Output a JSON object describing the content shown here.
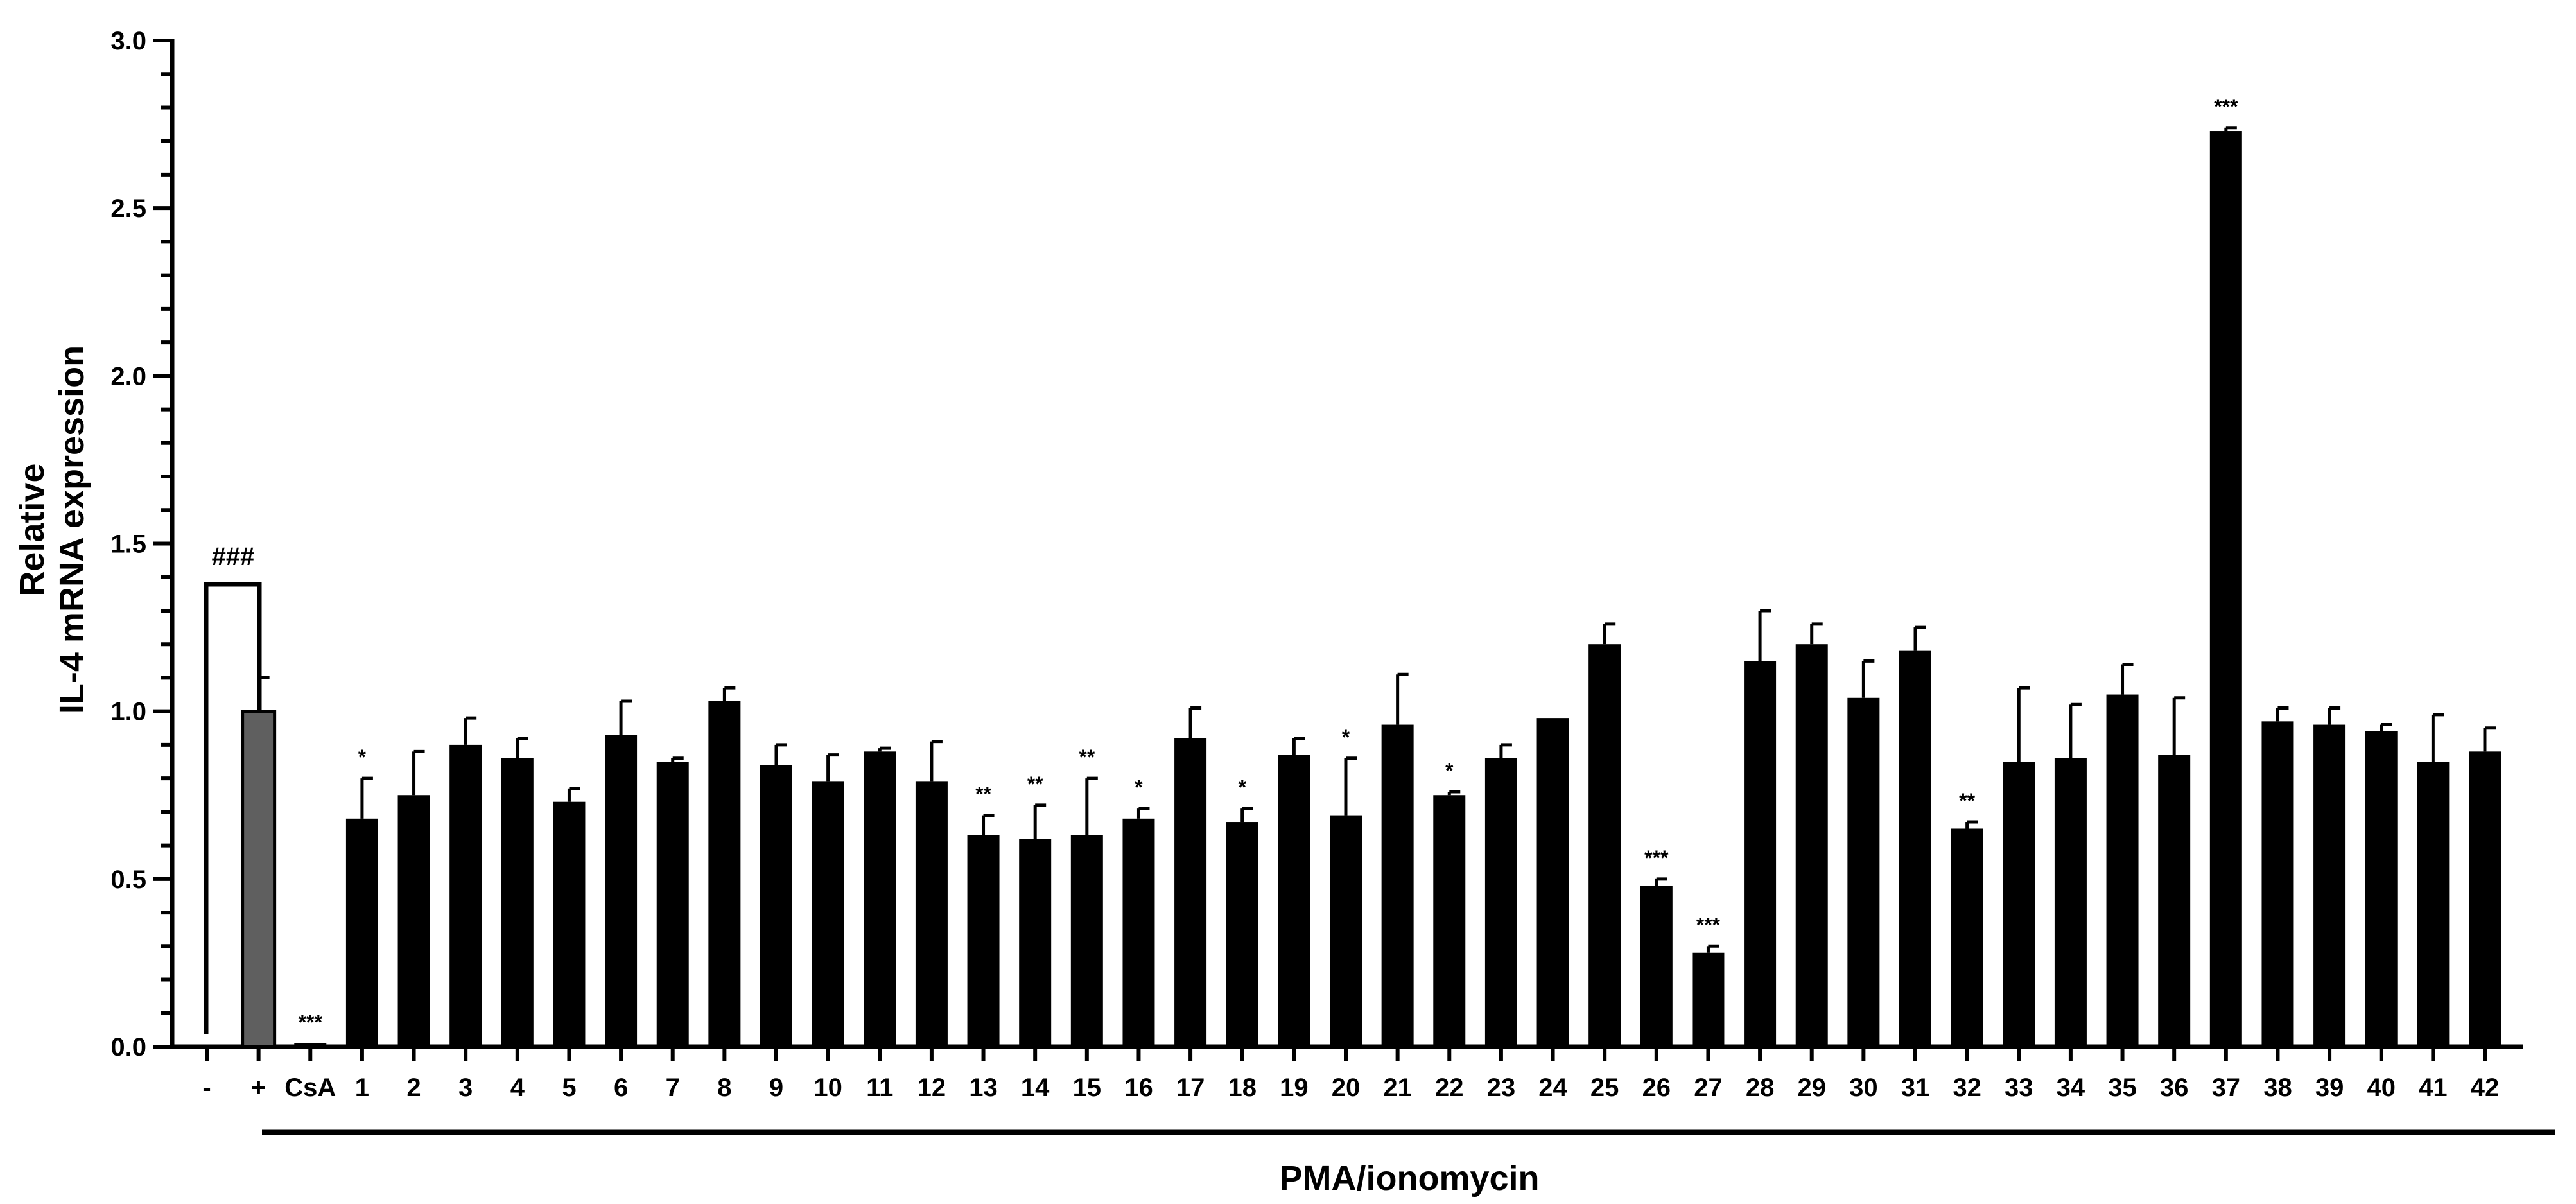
{
  "chart_data": {
    "type": "bar",
    "ylabel_lines": [
      "Relative",
      "IL-4 mRNA expression"
    ],
    "xlabel": "PMA/ionomycin",
    "ylim": [
      0,
      3.0
    ],
    "yticks": [
      "0.0",
      "0.5",
      "1.0",
      "1.5",
      "2.0",
      "2.5",
      "3.0"
    ],
    "control_bracket_label": "###",
    "grid": false,
    "colors": {
      "bar": "#000000",
      "positive_control": "#5f5f5f",
      "axis": "#000000"
    },
    "categories": [
      "-",
      "+",
      "CsA",
      "1",
      "2",
      "3",
      "4",
      "5",
      "6",
      "7",
      "8",
      "9",
      "10",
      "11",
      "12",
      "13",
      "14",
      "15",
      "16",
      "17",
      "18",
      "19",
      "20",
      "21",
      "22",
      "23",
      "24",
      "25",
      "26",
      "27",
      "28",
      "29",
      "30",
      "31",
      "32",
      "33",
      "34",
      "35",
      "36",
      "37",
      "38",
      "39",
      "40",
      "41",
      "42"
    ],
    "values": [
      0.0,
      1.0,
      0.01,
      0.68,
      0.75,
      0.9,
      0.86,
      0.73,
      0.93,
      0.85,
      1.03,
      0.84,
      0.79,
      0.88,
      0.79,
      0.63,
      0.62,
      0.63,
      0.68,
      0.92,
      0.67,
      0.87,
      0.69,
      0.96,
      0.75,
      0.86,
      0.98,
      1.2,
      0.48,
      0.28,
      1.15,
      1.2,
      1.04,
      1.18,
      0.65,
      0.85,
      0.86,
      1.05,
      0.87,
      2.73,
      0.97,
      0.96,
      0.94,
      0.85,
      0.88
    ],
    "errors": [
      0.0,
      0.1,
      0.0,
      0.12,
      0.13,
      0.08,
      0.06,
      0.04,
      0.1,
      0.01,
      0.04,
      0.06,
      0.08,
      0.01,
      0.12,
      0.06,
      0.1,
      0.17,
      0.03,
      0.09,
      0.04,
      0.05,
      0.17,
      0.15,
      0.01,
      0.04,
      0.0,
      0.06,
      0.02,
      0.02,
      0.15,
      0.06,
      0.11,
      0.07,
      0.02,
      0.22,
      0.16,
      0.09,
      0.17,
      0.01,
      0.04,
      0.05,
      0.02,
      0.14,
      0.07
    ],
    "significance": [
      "",
      "",
      "***",
      "*",
      "",
      "",
      "",
      "",
      "",
      "",
      "",
      "",
      "",
      "",
      "",
      "**",
      "**",
      "**",
      "*",
      "",
      "*",
      "",
      "*",
      "",
      "*",
      "",
      "",
      "",
      "***",
      "***",
      "",
      "",
      "",
      "",
      "**",
      "",
      "",
      "",
      "",
      "***",
      "",
      "",
      "",
      "",
      ""
    ]
  }
}
